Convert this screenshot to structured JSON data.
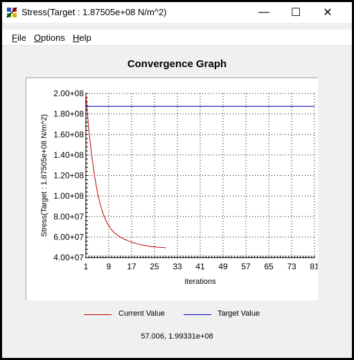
{
  "window": {
    "title": "Stress(Target : 1.87505e+08 N/m^2)",
    "minimize_glyph": "—",
    "maximize_glyph": "☐",
    "close_glyph": "✕",
    "app_icon": "app-graph-icon"
  },
  "menu": {
    "file_ul": "F",
    "file_rest": "ile",
    "options_ul": "O",
    "options_rest": "ptions",
    "help_ul": "H",
    "help_rest": "elp"
  },
  "graph": {
    "title": "Convergence Graph"
  },
  "legend": {
    "current_label": "Current Value",
    "target_label": "Target Value",
    "current_color": "#c00000",
    "target_color": "#0000c0"
  },
  "status": {
    "cursor_readout": "57.006, 1.99331e+08"
  },
  "chart_data": {
    "type": "line",
    "title": "Convergence Graph",
    "xlabel": "Iterations",
    "ylabel": "Stress(Target : 1.87505e+08 N/m^2)",
    "xlim": [
      1,
      81
    ],
    "ylim": [
      40000000,
      200000000
    ],
    "x_ticks": [
      "1",
      "9",
      "17",
      "25",
      "33",
      "41",
      "49",
      "57",
      "65",
      "73",
      "81"
    ],
    "y_ticks": [
      "4.00+07",
      "6.00+07",
      "8.00+07",
      "1.00+08",
      "1.20+08",
      "1.40+08",
      "1.60+08",
      "1.80+08",
      "2.00+08"
    ],
    "grid": true,
    "legend_placement": "bottom",
    "series": [
      {
        "name": "Current Value",
        "color": "#c00000",
        "x": [
          1,
          2,
          3,
          4,
          5,
          6,
          7,
          8,
          9,
          10,
          11,
          12,
          13,
          14,
          15,
          16,
          17,
          18,
          19,
          20,
          21,
          22,
          23,
          24,
          25,
          26,
          27,
          28,
          29
        ],
        "y": [
          199000000,
          165000000,
          140000000,
          120000000,
          104000000,
          92000000,
          83000000,
          76000000,
          71000000,
          67000000,
          64000000,
          62000000,
          60000000,
          58500000,
          57200000,
          56000000,
          55000000,
          54200000,
          53400000,
          52700000,
          52100000,
          51600000,
          51100000,
          50700000,
          50400000,
          50100000,
          49900000,
          49700000,
          49600000
        ]
      },
      {
        "name": "Target Value",
        "color": "#0000c0",
        "x": [
          1,
          81
        ],
        "y": [
          187505000,
          187505000
        ]
      }
    ]
  }
}
